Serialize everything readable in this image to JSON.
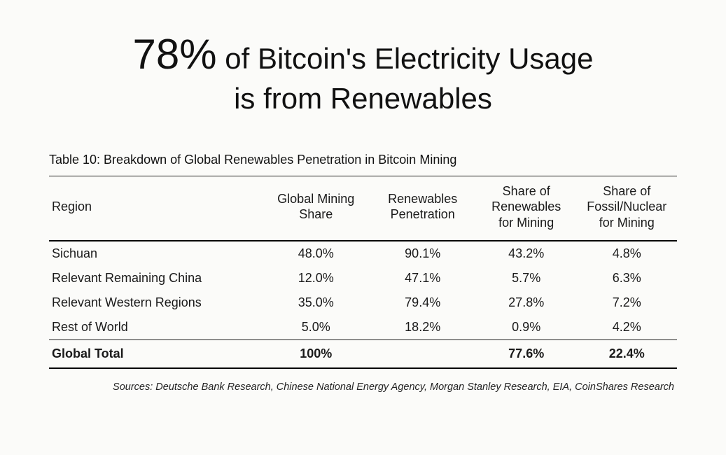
{
  "headline": {
    "big": "78%",
    "rest1": " of Bitcoin's Electricity Usage",
    "rest2": "is from Renewables"
  },
  "table": {
    "caption": "Table 10: Breakdown of Global Renewables Penetration in Bitcoin Mining",
    "columns": [
      "Region",
      "Global Mining Share",
      "Renewables Penetration",
      "Share of Renewables for Mining",
      "Share of Fossil/Nuclear for Mining"
    ],
    "col_align": [
      "left",
      "center",
      "center",
      "center",
      "center"
    ],
    "rows": [
      [
        "Sichuan",
        "48.0%",
        "90.1%",
        "43.2%",
        "4.8%"
      ],
      [
        "Relevant Remaining China",
        "12.0%",
        "47.1%",
        "5.7%",
        "6.3%"
      ],
      [
        "Relevant Western Regions",
        "35.0%",
        "79.4%",
        "27.8%",
        "7.2%"
      ],
      [
        "Rest of World",
        "5.0%",
        "18.2%",
        "0.9%",
        "4.2%"
      ]
    ],
    "total": [
      "Global Total",
      "100%",
      "",
      "77.6%",
      "22.4%"
    ],
    "border_color": "#000000",
    "header_fontsize_pt": 13,
    "body_fontsize_pt": 13
  },
  "sources": "Sources: Deutsche Bank Research, Chinese National Energy Agency, Morgan Stanley Research, EIA, CoinShares Research",
  "style": {
    "background_color": "#fbfbf9",
    "text_color": "#1a1a1a",
    "headline_big_fontsize_pt": 45,
    "headline_rest_fontsize_pt": 31,
    "caption_fontsize_pt": 13,
    "sources_fontsize_pt": 11,
    "font_family": "Segoe UI / Helvetica Neue"
  }
}
